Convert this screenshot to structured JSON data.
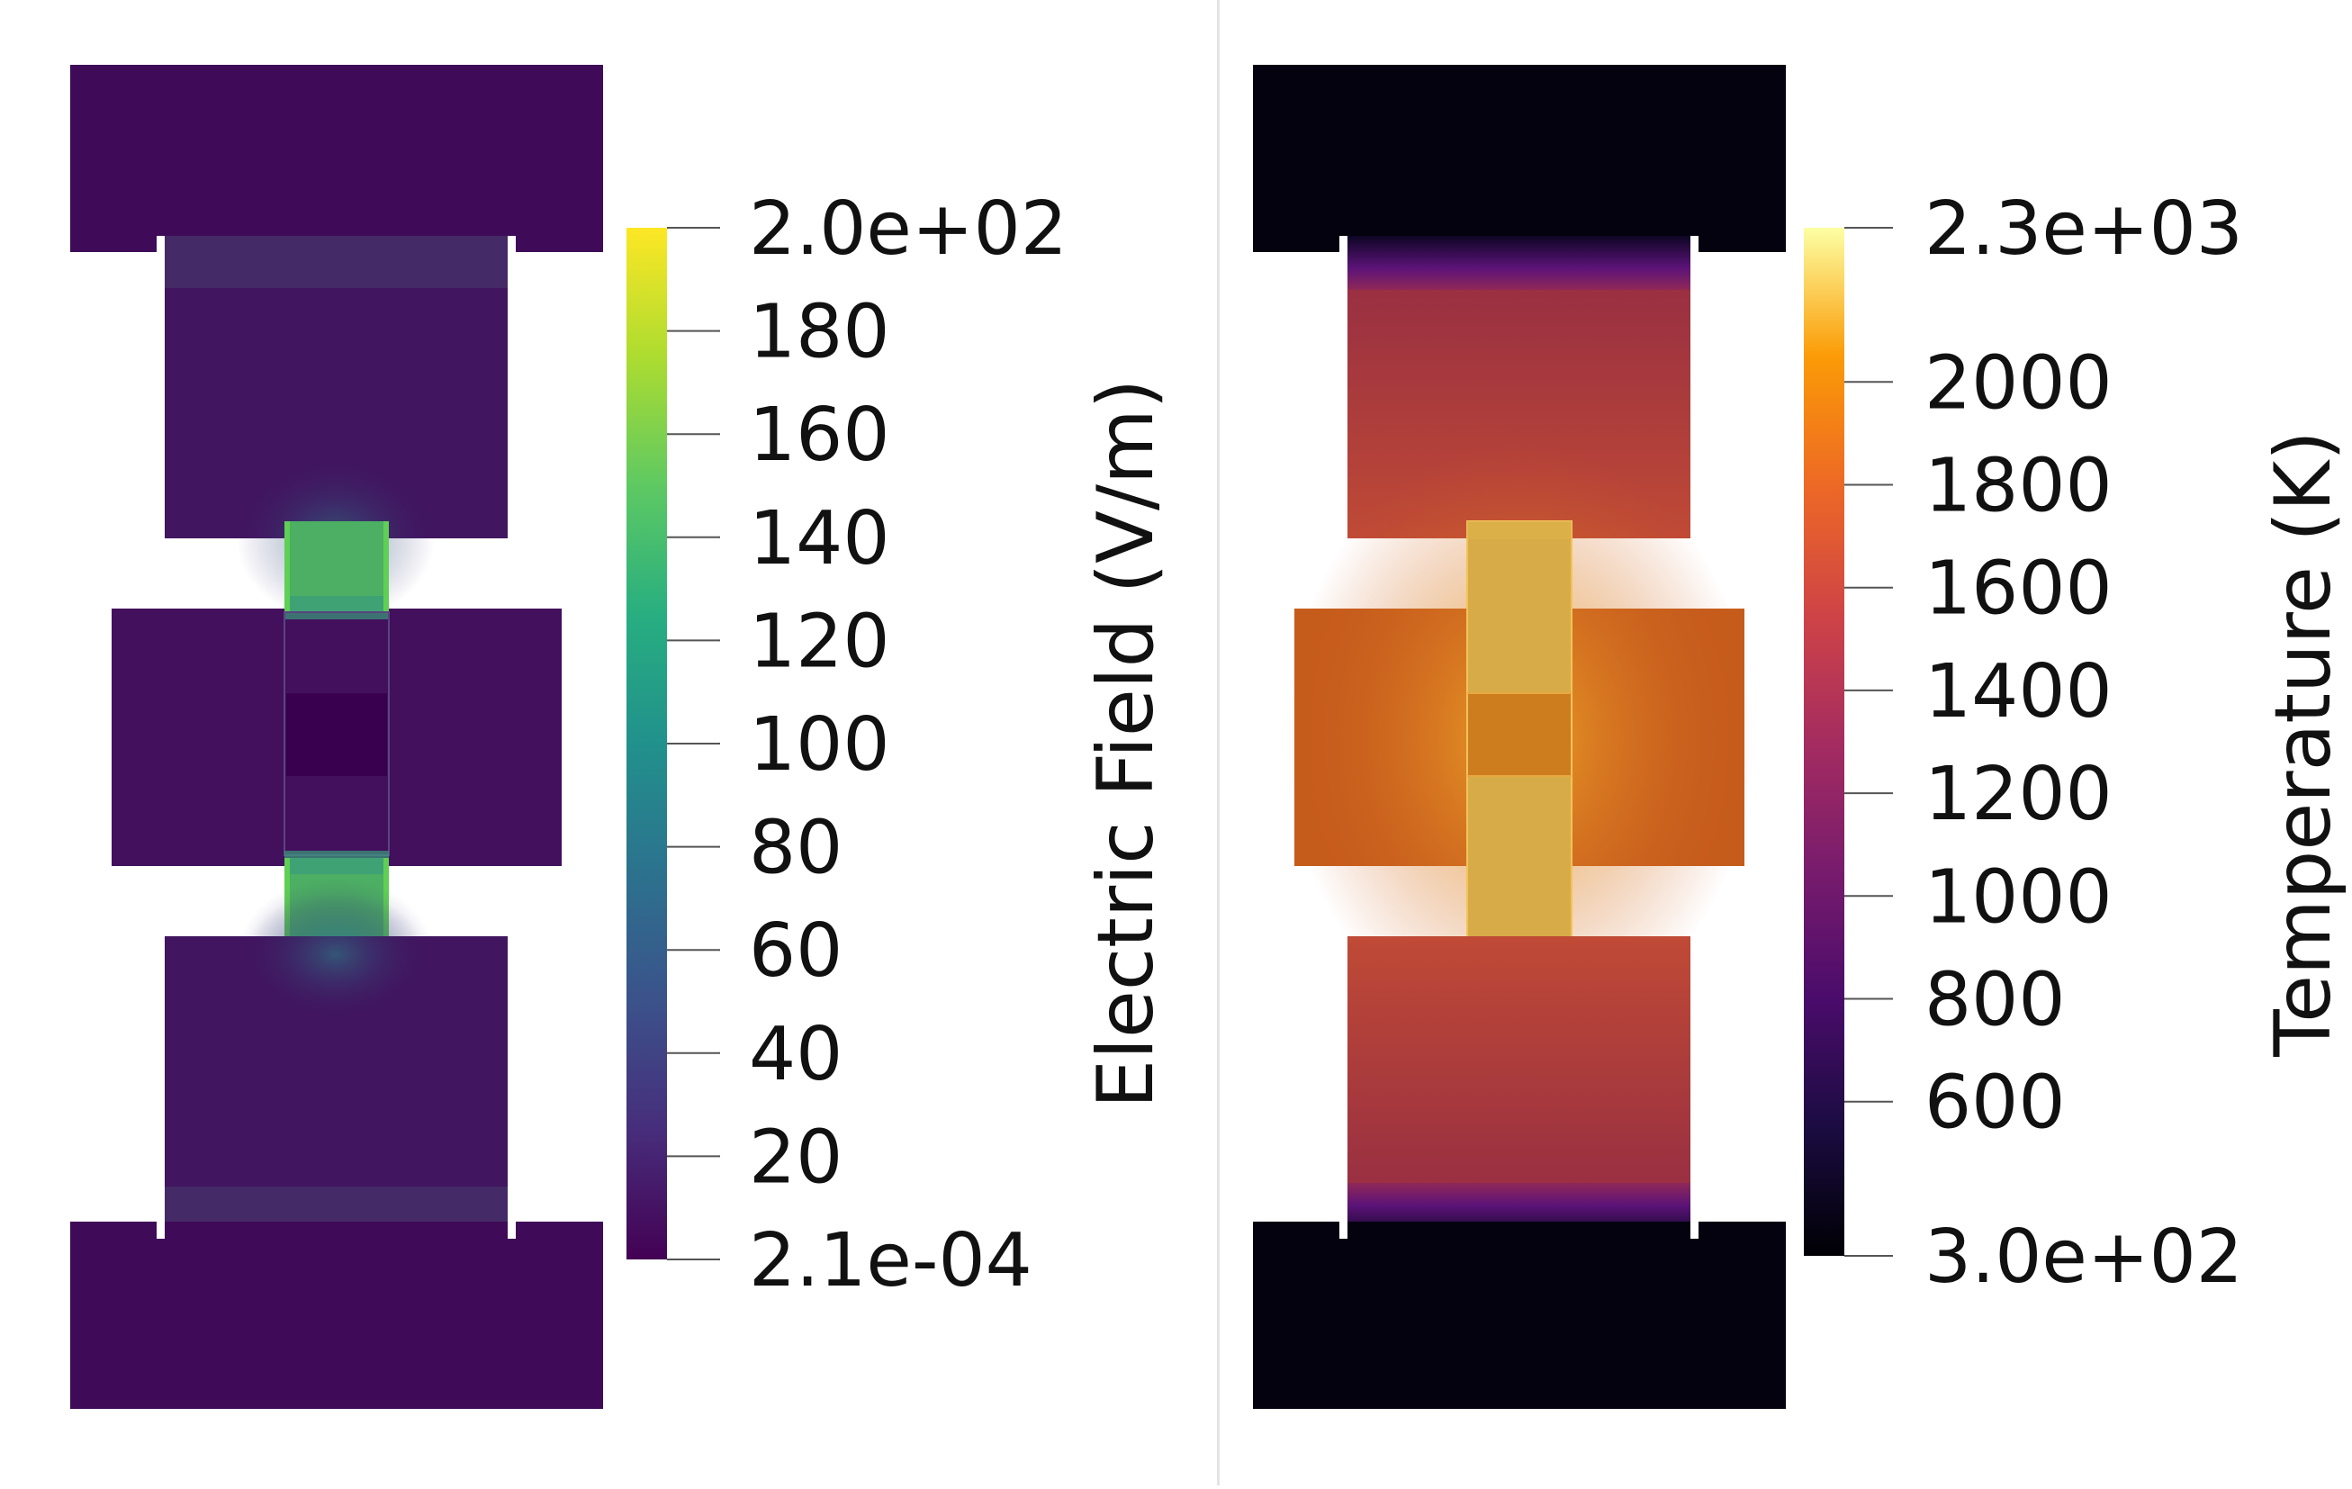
{
  "panels": [
    {
      "id": "electric-field",
      "colormap": "viridis",
      "colorbar": {
        "title": "Electric Field (V/m)",
        "max_label": "2.0e+02",
        "min_label": "2.1e-04",
        "min": 0.00021,
        "max": 200,
        "ticks": [
          {
            "value": 180,
            "label": "180"
          },
          {
            "value": 160,
            "label": "160"
          },
          {
            "value": 140,
            "label": "140"
          },
          {
            "value": 120,
            "label": "120"
          },
          {
            "value": 100,
            "label": "100"
          },
          {
            "value": 80,
            "label": "80"
          },
          {
            "value": 60,
            "label": "60"
          },
          {
            "value": 40,
            "label": "40"
          },
          {
            "value": 20,
            "label": "20"
          }
        ]
      }
    },
    {
      "id": "temperature",
      "colormap": "inferno",
      "colorbar": {
        "title": "Temperature (K)",
        "max_label": "2.3e+03",
        "min_label": "3.0e+02",
        "min": 300,
        "max": 2300,
        "ticks": [
          {
            "value": 2000,
            "label": "2000"
          },
          {
            "value": 1800,
            "label": "1800"
          },
          {
            "value": 1600,
            "label": "1600"
          },
          {
            "value": 1400,
            "label": "1400"
          },
          {
            "value": 1200,
            "label": "1200"
          },
          {
            "value": 1000,
            "label": "1000"
          },
          {
            "value": 800,
            "label": "800"
          },
          {
            "value": 600,
            "label": "600"
          }
        ]
      }
    }
  ]
}
